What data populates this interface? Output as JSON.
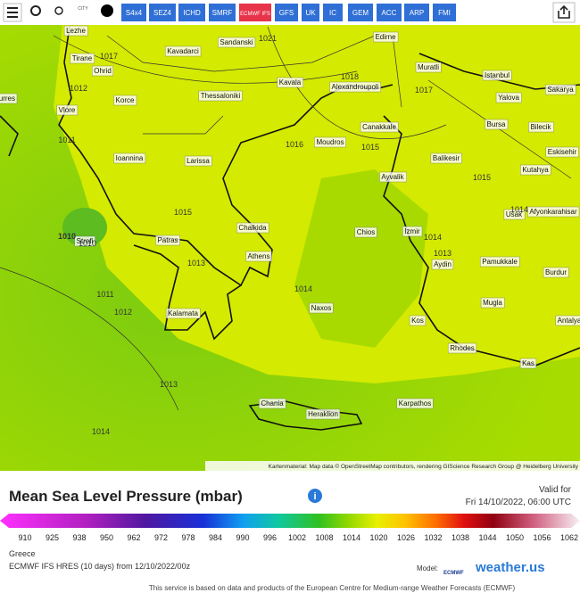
{
  "toolbar": {
    "buttons": [
      "S4x4",
      "SEZ4",
      "ICHD",
      "SMRF",
      "ECMWF IFS",
      "GFS",
      "UK",
      "IC",
      "GEM",
      "ACC",
      "ARP",
      "FMI"
    ],
    "city": "CITY"
  },
  "map": {
    "places": [
      "Lezhe",
      "Tirane",
      "Kavadarci",
      "Sandanski",
      "Edirne",
      "Ohrid",
      "Muratli",
      "Istanbul",
      "Kavala",
      "Alexandroupoli",
      "Sakarya",
      "Korce",
      "Thessaloniki",
      "Yalova",
      "Vlore",
      "Canakkale",
      "Bursa",
      "Bilecik",
      "Moudros",
      "Ioannina",
      "Larissa",
      "Balikesir",
      "Eskisehir",
      "Kutahya",
      "Ayvalik",
      "Chalkida",
      "Usak",
      "Afyonkarahisar",
      "Chios",
      "Izmir",
      "Patras",
      "Aydin",
      "Pamukkale",
      "Athens",
      "Burdur",
      "Naxos",
      "Mugla",
      "Kalamata",
      "Kos",
      "Antalya",
      "Rhodes",
      "Kas",
      "Chania",
      "Heraklion",
      "Karpathos",
      "Strefi",
      "Durres"
    ],
    "isobars": [
      1021,
      1017,
      1018,
      1012,
      1017,
      1011,
      1016,
      1015,
      1015,
      1015,
      1014,
      1010,
      1010,
      1014,
      1013,
      1013,
      1014,
      1011,
      1012,
      1013,
      1014
    ],
    "attribution": "Kartenmaterial: Map data © OpenStreetMap contributors, rendering GIScience Research Group @ Heidelberg University"
  },
  "legend": {
    "title": "Mean Sea Level Pressure (mbar)",
    "valid_label": "Valid for",
    "valid_time": "Fri 14/10/2022, 06:00 UTC",
    "scale_ticks": [
      910,
      925,
      938,
      950,
      962,
      972,
      978,
      984,
      990,
      996,
      1002,
      1008,
      1014,
      1020,
      1026,
      1032,
      1038,
      1044,
      1050,
      1056,
      1062
    ]
  },
  "footer": {
    "region": "Greece",
    "run": "ECMWF IFS HRES (10 days) from 12/10/2022/00z",
    "model_label": "Model:",
    "model_logo": "ECMWF",
    "brand": "weather.us",
    "notice": "This service is based on data and products of the European Centre for Medium-range Weather Forecasts (ECMWF)"
  }
}
